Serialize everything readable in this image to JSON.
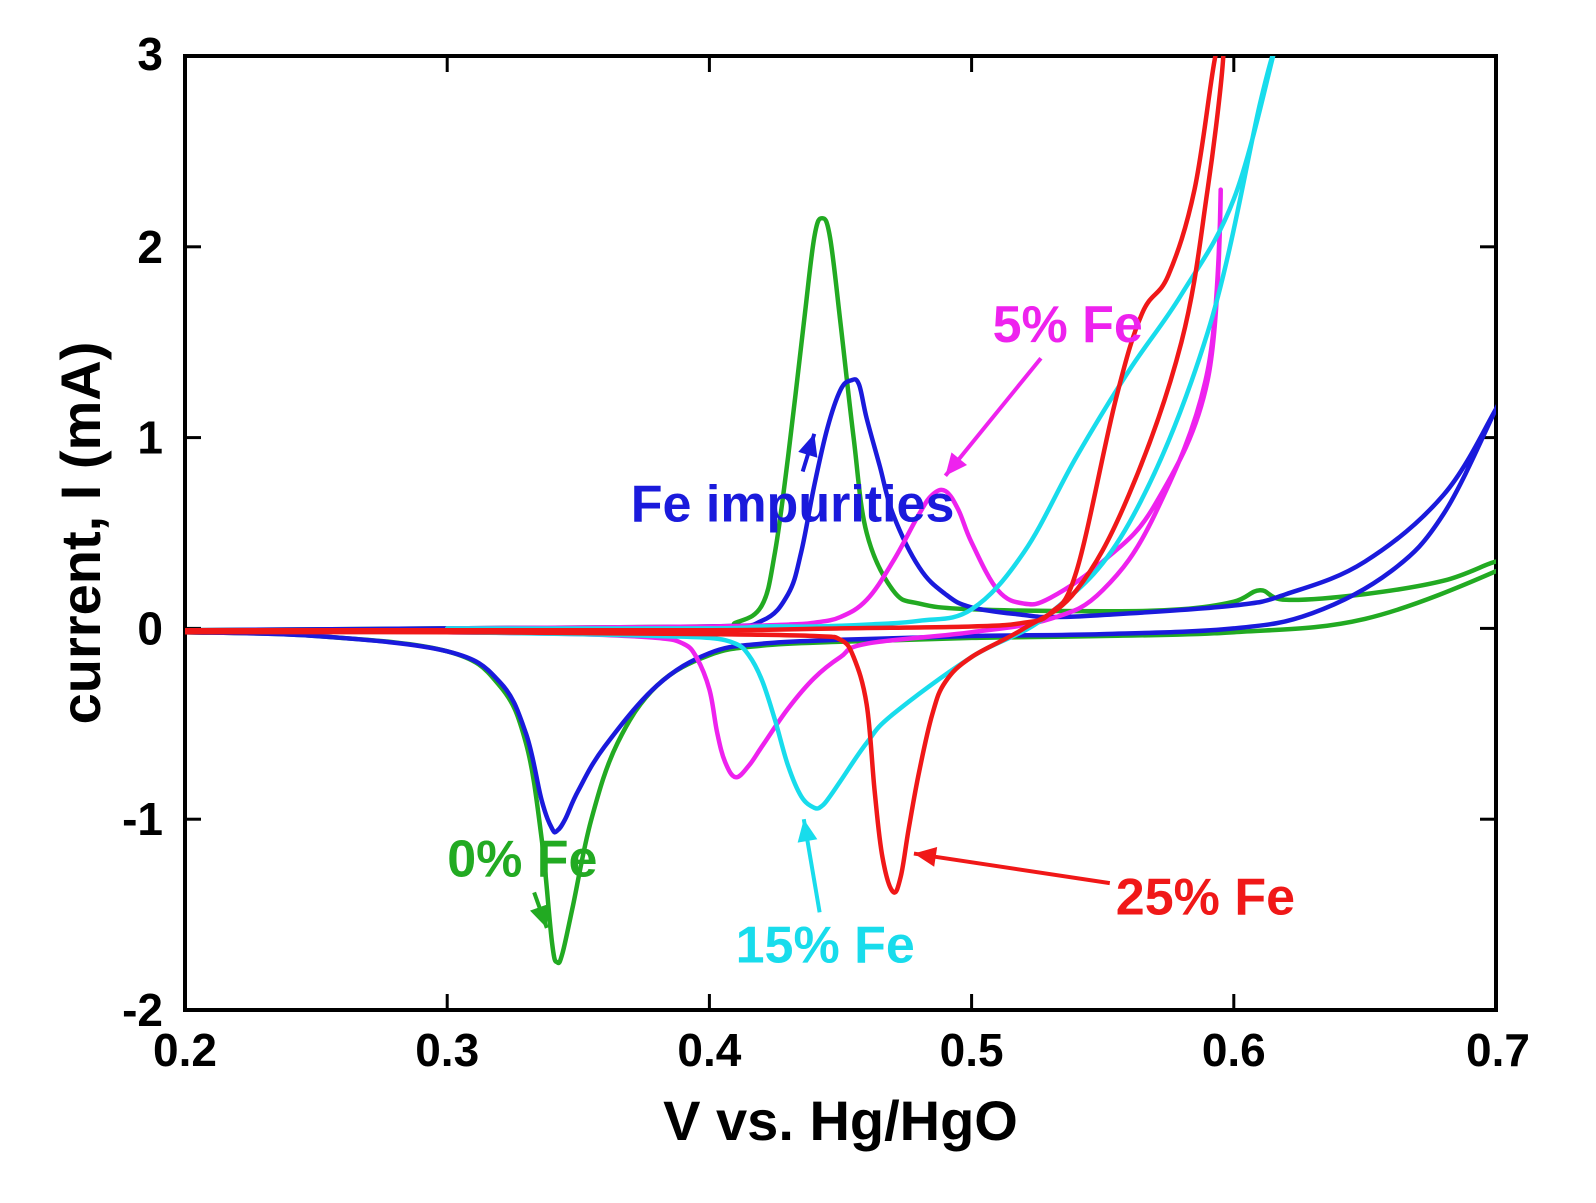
{
  "chart_data": {
    "type": "line",
    "title": "",
    "xlabel": "V vs. Hg/HgO",
    "ylabel": "current, I (mA)",
    "xlim": [
      0.2,
      0.7
    ],
    "ylim": [
      -2,
      3
    ],
    "xticks": [
      0.2,
      0.3,
      0.4,
      0.5,
      0.6,
      0.7
    ],
    "xtick_labels": [
      "0.2",
      "0.3",
      "0.4",
      "0.5",
      "0.6",
      "0.7"
    ],
    "yticks": [
      -2,
      -1,
      0,
      1,
      2,
      3
    ],
    "ytick_labels": [
      "-2",
      "-1",
      "0",
      "1",
      "2",
      "3"
    ],
    "grid": false,
    "series": [
      {
        "name": "0% Fe",
        "color": "#22aa22",
        "x": [
          0.2,
          0.25,
          0.3,
          0.32,
          0.33,
          0.336,
          0.34,
          0.342,
          0.344,
          0.348,
          0.355,
          0.365,
          0.38,
          0.4,
          0.42,
          0.45,
          0.5,
          0.55,
          0.6,
          0.65,
          0.7,
          0.7,
          0.68,
          0.65,
          0.62,
          0.61,
          0.6,
          0.58,
          0.55,
          0.5,
          0.48,
          0.47,
          0.46,
          0.455,
          0.45,
          0.446,
          0.443,
          0.44,
          0.436,
          0.43,
          0.425,
          0.42,
          0.41,
          0.4,
          0.3,
          0.2
        ],
        "y": [
          -0.02,
          -0.04,
          -0.12,
          -0.3,
          -0.6,
          -1.1,
          -1.65,
          -1.75,
          -1.7,
          -1.45,
          -1.0,
          -0.6,
          -0.3,
          -0.14,
          -0.09,
          -0.07,
          -0.05,
          -0.04,
          -0.02,
          0.05,
          0.3,
          0.35,
          0.25,
          0.18,
          0.15,
          0.2,
          0.14,
          0.1,
          0.09,
          0.1,
          0.13,
          0.2,
          0.5,
          1.0,
          1.6,
          2.05,
          2.15,
          2.05,
          1.6,
          0.9,
          0.4,
          0.12,
          0.03,
          0.01,
          0.0,
          -0.01
        ]
      },
      {
        "name": "Fe impurities",
        "color": "#1a1adc",
        "x": [
          0.2,
          0.25,
          0.3,
          0.32,
          0.33,
          0.336,
          0.34,
          0.342,
          0.345,
          0.35,
          0.36,
          0.38,
          0.4,
          0.42,
          0.45,
          0.5,
          0.55,
          0.6,
          0.63,
          0.66,
          0.68,
          0.7,
          0.7,
          0.68,
          0.65,
          0.62,
          0.6,
          0.55,
          0.53,
          0.52,
          0.5,
          0.49,
          0.48,
          0.47,
          0.465,
          0.46,
          0.457,
          0.454,
          0.45,
          0.445,
          0.44,
          0.435,
          0.43,
          0.42,
          0.4,
          0.3,
          0.2
        ],
        "y": [
          -0.02,
          -0.04,
          -0.12,
          -0.28,
          -0.55,
          -0.9,
          -1.05,
          -1.06,
          -1.0,
          -0.85,
          -0.62,
          -0.3,
          -0.13,
          -0.08,
          -0.06,
          -0.04,
          -0.03,
          0.0,
          0.08,
          0.3,
          0.6,
          1.15,
          1.15,
          0.7,
          0.35,
          0.18,
          0.12,
          0.07,
          0.06,
          0.07,
          0.11,
          0.18,
          0.32,
          0.6,
          0.85,
          1.1,
          1.28,
          1.3,
          1.25,
          1.05,
          0.75,
          0.4,
          0.18,
          0.04,
          0.01,
          0.0,
          -0.01
        ]
      },
      {
        "name": "5% Fe",
        "color": "#ee22ee",
        "x": [
          0.3,
          0.35,
          0.38,
          0.39,
          0.395,
          0.4,
          0.403,
          0.406,
          0.41,
          0.415,
          0.42,
          0.43,
          0.44,
          0.45,
          0.46,
          0.5,
          0.53,
          0.55,
          0.57,
          0.59,
          0.595,
          0.59,
          0.57,
          0.55,
          0.53,
          0.52,
          0.51,
          0.5,
          0.495,
          0.49,
          0.485,
          0.48,
          0.47,
          0.46,
          0.45,
          0.44,
          0.43,
          0.4,
          0.3
        ],
        "y": [
          -0.02,
          -0.03,
          -0.05,
          -0.08,
          -0.15,
          -0.32,
          -0.55,
          -0.7,
          -0.78,
          -0.72,
          -0.62,
          -0.42,
          -0.26,
          -0.15,
          -0.08,
          -0.02,
          0.05,
          0.2,
          0.6,
          1.35,
          2.3,
          1.3,
          0.65,
          0.35,
          0.16,
          0.13,
          0.2,
          0.45,
          0.62,
          0.72,
          0.7,
          0.6,
          0.35,
          0.15,
          0.06,
          0.03,
          0.02,
          0.01,
          0.0
        ]
      },
      {
        "name": "15% Fe",
        "color": "#18dcec",
        "x": [
          0.3,
          0.35,
          0.38,
          0.4,
          0.41,
          0.415,
          0.42,
          0.425,
          0.43,
          0.435,
          0.44,
          0.443,
          0.446,
          0.45,
          0.46,
          0.47,
          0.5,
          0.53,
          0.56,
          0.59,
          0.61,
          0.615,
          0.6,
          0.58,
          0.56,
          0.54,
          0.52,
          0.5,
          0.48,
          0.46,
          0.44,
          0.42,
          0.4,
          0.3
        ],
        "y": [
          -0.02,
          -0.03,
          -0.04,
          -0.05,
          -0.08,
          -0.14,
          -0.27,
          -0.48,
          -0.72,
          -0.88,
          -0.94,
          -0.93,
          -0.88,
          -0.8,
          -0.6,
          -0.45,
          -0.15,
          0.08,
          0.55,
          1.55,
          2.75,
          3.0,
          2.25,
          1.75,
          1.35,
          0.9,
          0.4,
          0.1,
          0.04,
          0.02,
          0.01,
          0.01,
          0.0,
          0.0
        ]
      },
      {
        "name": "25% Fe",
        "color": "#f01818",
        "x": [
          0.2,
          0.3,
          0.4,
          0.44,
          0.45,
          0.455,
          0.46,
          0.463,
          0.466,
          0.47,
          0.473,
          0.476,
          0.48,
          0.485,
          0.49,
          0.5,
          0.52,
          0.54,
          0.56,
          0.58,
          0.59,
          0.596,
          0.593,
          0.585,
          0.575,
          0.565,
          0.555,
          0.54,
          0.53,
          0.52,
          0.5,
          0.45,
          0.4,
          0.3,
          0.2
        ],
        "y": [
          -0.02,
          -0.02,
          -0.03,
          -0.04,
          -0.06,
          -0.15,
          -0.4,
          -0.85,
          -1.2,
          -1.38,
          -1.3,
          -1.05,
          -0.75,
          -0.45,
          -0.28,
          -0.15,
          0.0,
          0.2,
          0.7,
          1.5,
          2.3,
          3.0,
          3.0,
          2.3,
          1.85,
          1.65,
          1.2,
          0.3,
          0.08,
          0.03,
          0.01,
          0.0,
          -0.01,
          -0.01,
          -0.01
        ]
      }
    ],
    "annotations": [
      {
        "text": "5% Fe",
        "color": "#ee22ee",
        "at": [
          0.508,
          1.5
        ],
        "arrow_to": [
          0.49,
          0.8
        ]
      },
      {
        "text": "Fe impurities",
        "color": "#1a1adc",
        "at": [
          0.37,
          0.56
        ],
        "arrow_to": [
          0.44,
          1.02
        ]
      },
      {
        "text": "0% Fe",
        "color": "#22aa22",
        "at": [
          0.3,
          -1.3
        ],
        "arrow_to": [
          0.338,
          -1.57
        ]
      },
      {
        "text": "15% Fe",
        "color": "#18dcec",
        "at": [
          0.41,
          -1.75
        ],
        "arrow_to": [
          0.436,
          -1.0
        ]
      },
      {
        "text": "25% Fe",
        "color": "#f01818",
        "at": [
          0.555,
          -1.5
        ],
        "arrow_to": [
          0.478,
          -1.18
        ]
      }
    ]
  }
}
